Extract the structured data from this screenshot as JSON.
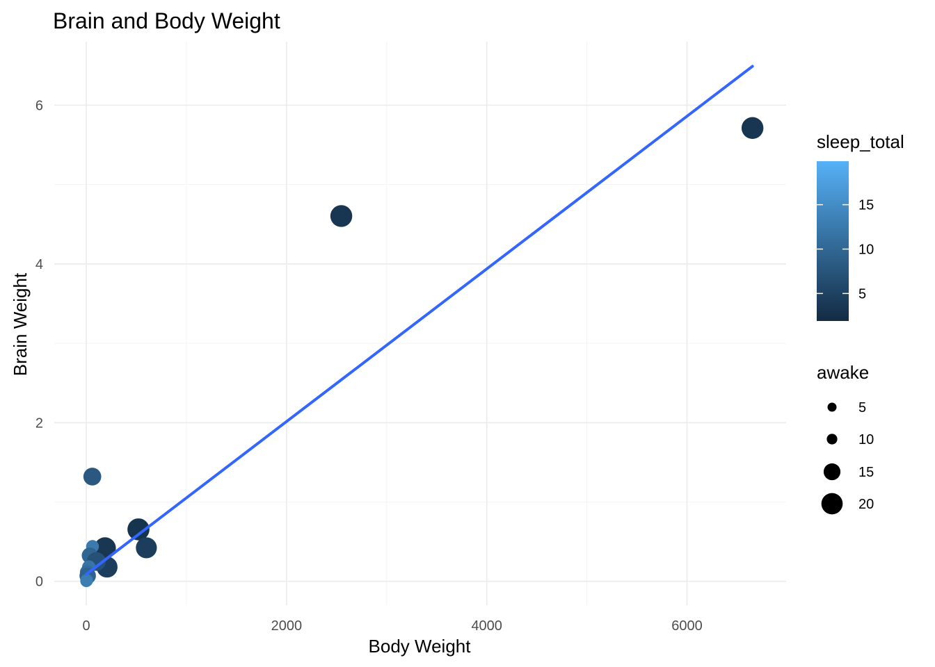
{
  "chart_data": {
    "type": "scatter",
    "title": "Brain and Body Weight",
    "xlabel": "Body Weight",
    "ylabel": "Brain Weight",
    "xlim": [
      -320,
      6990
    ],
    "ylim": [
      -0.3,
      6.8
    ],
    "x_ticks": [
      0,
      2000,
      4000,
      6000
    ],
    "x_tick_labels": [
      "0",
      "2000",
      "4000",
      "6000"
    ],
    "y_ticks": [
      0,
      2,
      4,
      6
    ],
    "y_tick_labels": [
      "0",
      "2",
      "4",
      "6"
    ],
    "grid": true,
    "color_legend": {
      "title": "sleep_total",
      "range": [
        1.9,
        19.9
      ],
      "breaks": [
        5,
        10,
        15
      ],
      "labels": [
        "5",
        "10",
        "15"
      ],
      "low_color": "#132b43",
      "high_color": "#56b1f7"
    },
    "size_legend": {
      "title": "awake",
      "breaks": [
        5,
        10,
        15,
        20
      ],
      "labels": [
        "5",
        "10",
        "15",
        "20"
      ]
    },
    "points": [
      {
        "x": 6654,
        "y": 5.712,
        "sleep_total": 3.3,
        "awake": 20.7
      },
      {
        "x": 2547,
        "y": 4.603,
        "sleep_total": 3.3,
        "awake": 20.7
      },
      {
        "x": 60,
        "y": 1.32,
        "sleep_total": 8.0,
        "awake": 16.0
      },
      {
        "x": 521,
        "y": 0.655,
        "sleep_total": 3.1,
        "awake": 20.9
      },
      {
        "x": 600,
        "y": 0.423,
        "sleep_total": 4.4,
        "awake": 19.6
      },
      {
        "x": 187,
        "y": 0.419,
        "sleep_total": 3.5,
        "awake": 20.5
      },
      {
        "x": 207,
        "y": 0.18,
        "sleep_total": 4.4,
        "awake": 19.6
      },
      {
        "x": 62,
        "y": 0.44,
        "sleep_total": 12.5,
        "awake": 11.5
      },
      {
        "x": 35,
        "y": 0.325,
        "sleep_total": 9.7,
        "awake": 14.3
      },
      {
        "x": 100,
        "y": 0.25,
        "sleep_total": 7.0,
        "awake": 17.0
      },
      {
        "x": 25,
        "y": 0.18,
        "sleep_total": 12.0,
        "awake": 12.0
      },
      {
        "x": 10,
        "y": 0.115,
        "sleep_total": 10.9,
        "awake": 13.1
      },
      {
        "x": 14,
        "y": 0.07,
        "sleep_total": 9.4,
        "awake": 14.6
      },
      {
        "x": 3.5,
        "y": 0.012,
        "sleep_total": 12.5,
        "awake": 11.5
      },
      {
        "x": 1.0,
        "y": 0.005,
        "sleep_total": 14.4,
        "awake": 9.6
      },
      {
        "x": 0.5,
        "y": 0.004,
        "sleep_total": 13.0,
        "awake": 11.0
      }
    ],
    "smooth_line": {
      "method": "lm",
      "color": "#3366ff",
      "x": [
        0,
        6654
      ],
      "y": [
        0.09,
        6.49
      ]
    }
  }
}
